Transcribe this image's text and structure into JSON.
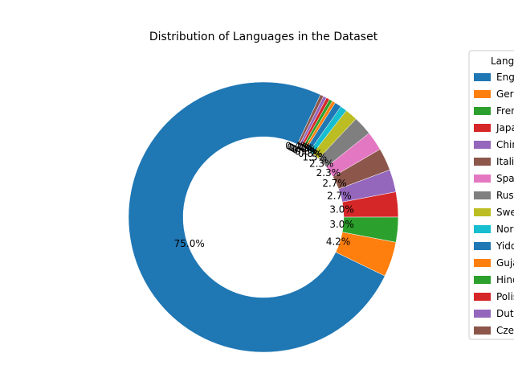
{
  "chart_data": {
    "type": "pie",
    "variant": "donut",
    "title": "Distribution of Languages in the Dataset",
    "legend_title": "Languages",
    "legend_position": "right",
    "slices": [
      {
        "label": "English",
        "value": 75.0,
        "pct_label": "75.0%",
        "color": "#1f77b4"
      },
      {
        "label": "German",
        "value": 4.2,
        "pct_label": "4.2%",
        "color": "#ff7f0e"
      },
      {
        "label": "French",
        "value": 3.0,
        "pct_label": "3.0%",
        "color": "#2ca02c"
      },
      {
        "label": "Japanese",
        "value": 3.0,
        "pct_label": "3.0%",
        "color": "#d62728"
      },
      {
        "label": "Chinese",
        "value": 2.7,
        "pct_label": "2.7%",
        "color": "#9467bd"
      },
      {
        "label": "Italian",
        "value": 2.7,
        "pct_label": "2.7%",
        "color": "#8c564b"
      },
      {
        "label": "Spanish",
        "value": 2.3,
        "pct_label": "2.3%",
        "color": "#e377c2"
      },
      {
        "label": "Russian",
        "value": 2.3,
        "pct_label": "2.3%",
        "color": "#7f7f7f"
      },
      {
        "label": "Swedish",
        "value": 1.5,
        "pct_label": "1.5%",
        "color": "#bcbd22"
      },
      {
        "label": "Norwegian",
        "value": 0.8,
        "pct_label": "0.8%",
        "color": "#17becf"
      },
      {
        "label": "Yiddish",
        "value": 0.8,
        "pct_label": "0.8%",
        "color": "#1f77b4"
      },
      {
        "label": "Gujarati",
        "value": 0.4,
        "pct_label": "0.4%",
        "color": "#ff7f0e"
      },
      {
        "label": "Hindi",
        "value": 0.4,
        "pct_label": "0.4%",
        "color": "#2ca02c"
      },
      {
        "label": "Polish",
        "value": 0.4,
        "pct_label": "0.4%",
        "color": "#d62728"
      },
      {
        "label": "Dutch",
        "value": 0.4,
        "pct_label": "0.4%",
        "color": "#9467bd"
      },
      {
        "label": "Czech",
        "value": 0.4,
        "pct_label": "0.4%",
        "color": "#8c564b"
      }
    ]
  }
}
